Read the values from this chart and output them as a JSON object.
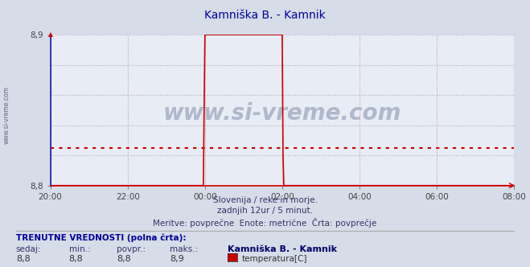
{
  "title": "Kamniška B. - Kamnik",
  "bg_color": "#d6dce8",
  "plot_bg_color": "#e8ecf4",
  "line_color": "#cc0000",
  "avg_line_color": "#cc0000",
  "avg_line_value": 8.825,
  "blue_line_color": "#2222aa",
  "x_min": 0,
  "x_max": 288,
  "y_min": 8.8,
  "y_max": 8.9,
  "tick_labels": [
    "20:00",
    "22:00",
    "00:00",
    "02:00",
    "04:00",
    "06:00",
    "08:00"
  ],
  "tick_positions": [
    0,
    48,
    96,
    144,
    192,
    240,
    288
  ],
  "y_ticks": [
    8.8,
    8.9
  ],
  "subtitle1": "Slovenija / reke in morje.",
  "subtitle2": "zadnjih 12ur / 5 minut.",
  "subtitle3": "Meritve: povprečne  Enote: metrične  Črta: povprečje",
  "footer_title": "TRENUTNE VREDNOSTI (polna črta):",
  "footer_cols": [
    "sedaj:",
    "min.:",
    "povpr.:",
    "maks.:"
  ],
  "footer_vals": [
    "8,8",
    "8,8",
    "8,8",
    "8,9"
  ],
  "legend_label": "temperatura[C]",
  "legend_color": "#cc0000",
  "station_label": "Kamniška B. - Kamnik",
  "watermark": "www.si-vreme.com",
  "left_label": "www.si-vreme.com",
  "vgrid_color": "#cc9999",
  "hgrid_color": "#aaaacc",
  "data_x": [
    0,
    95,
    96,
    96.5,
    144,
    144.5,
    145,
    288
  ],
  "data_y": [
    8.8,
    8.8,
    8.9,
    8.9,
    8.9,
    8.82,
    8.8,
    8.8
  ],
  "blue_vert_x": 0
}
